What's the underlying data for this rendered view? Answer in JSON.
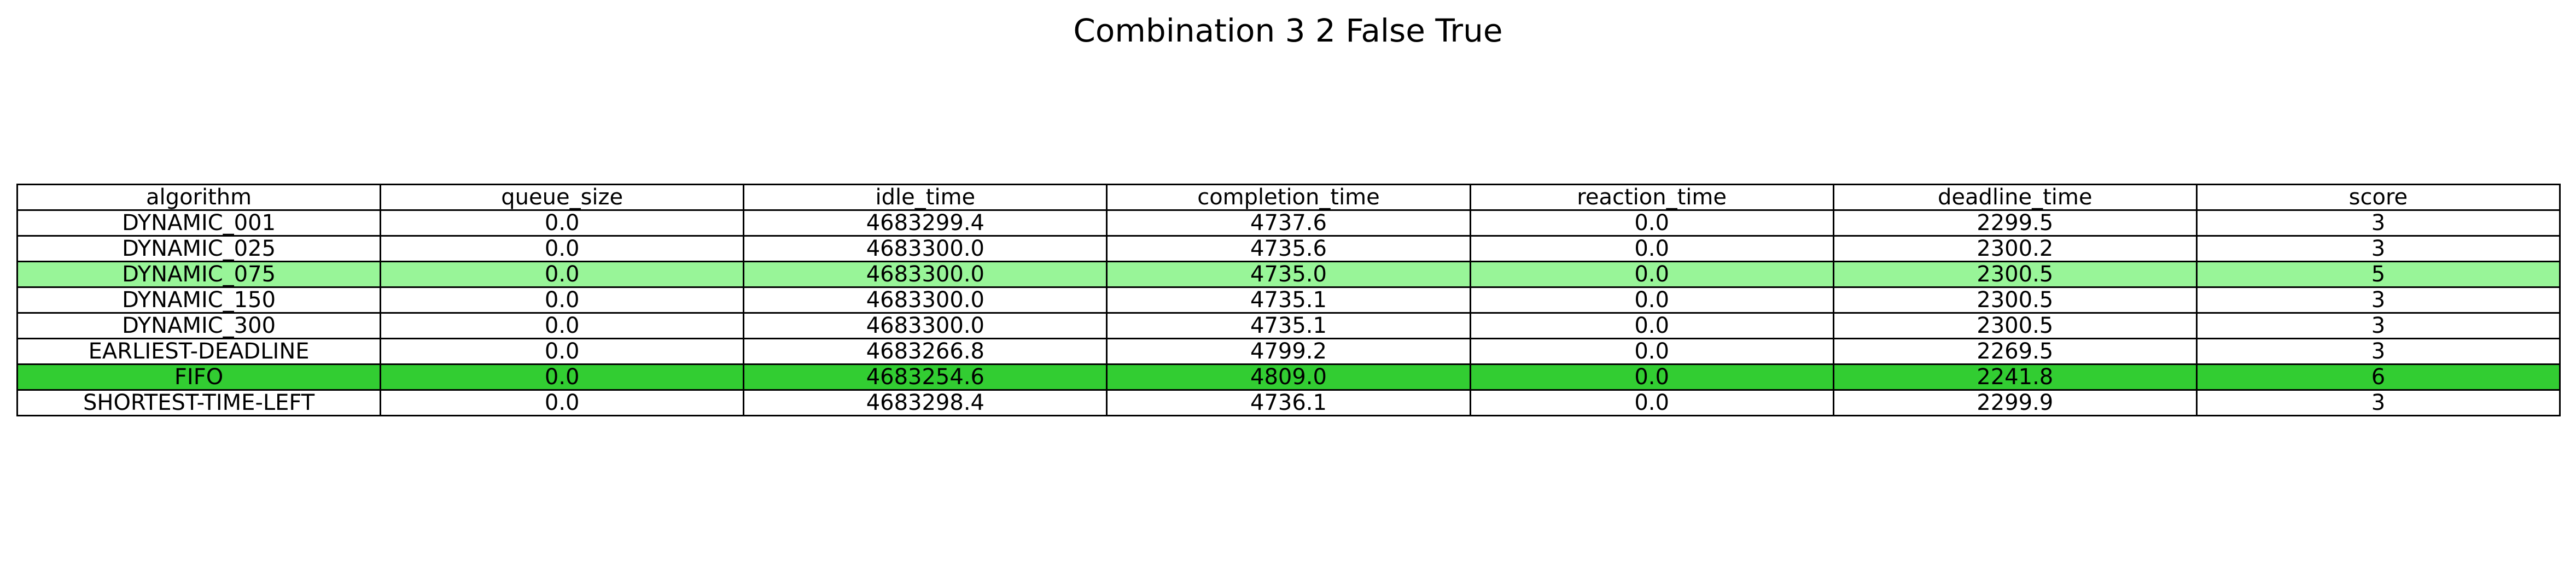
{
  "chart_data": {
    "type": "table",
    "title": "Combination 3 2 False True",
    "columns": [
      "algorithm",
      "queue_size",
      "idle_time",
      "completion_time",
      "reaction_time",
      "deadline_time",
      "score"
    ],
    "rows": [
      {
        "cells": [
          "DYNAMIC_001",
          "0.0",
          "4683299.4",
          "4737.6",
          "0.0",
          "2299.5",
          "3"
        ],
        "highlight": ""
      },
      {
        "cells": [
          "DYNAMIC_025",
          "0.0",
          "4683300.0",
          "4735.6",
          "0.0",
          "2300.2",
          "3"
        ],
        "highlight": ""
      },
      {
        "cells": [
          "DYNAMIC_075",
          "0.0",
          "4683300.0",
          "4735.0",
          "0.0",
          "2300.5",
          "5"
        ],
        "highlight": "#98f598"
      },
      {
        "cells": [
          "DYNAMIC_150",
          "0.0",
          "4683300.0",
          "4735.1",
          "0.0",
          "2300.5",
          "3"
        ],
        "highlight": ""
      },
      {
        "cells": [
          "DYNAMIC_300",
          "0.0",
          "4683300.0",
          "4735.1",
          "0.0",
          "2300.5",
          "3"
        ],
        "highlight": ""
      },
      {
        "cells": [
          "EARLIEST-DEADLINE",
          "0.0",
          "4683266.8",
          "4799.2",
          "0.0",
          "2269.5",
          "3"
        ],
        "highlight": ""
      },
      {
        "cells": [
          "FIFO",
          "0.0",
          "4683254.6",
          "4809.0",
          "0.0",
          "2241.8",
          "6"
        ],
        "highlight": "#32cd32"
      },
      {
        "cells": [
          "SHORTEST-TIME-LEFT",
          "0.0",
          "4683298.4",
          "4736.1",
          "0.0",
          "2299.9",
          "3"
        ],
        "highlight": ""
      }
    ]
  }
}
